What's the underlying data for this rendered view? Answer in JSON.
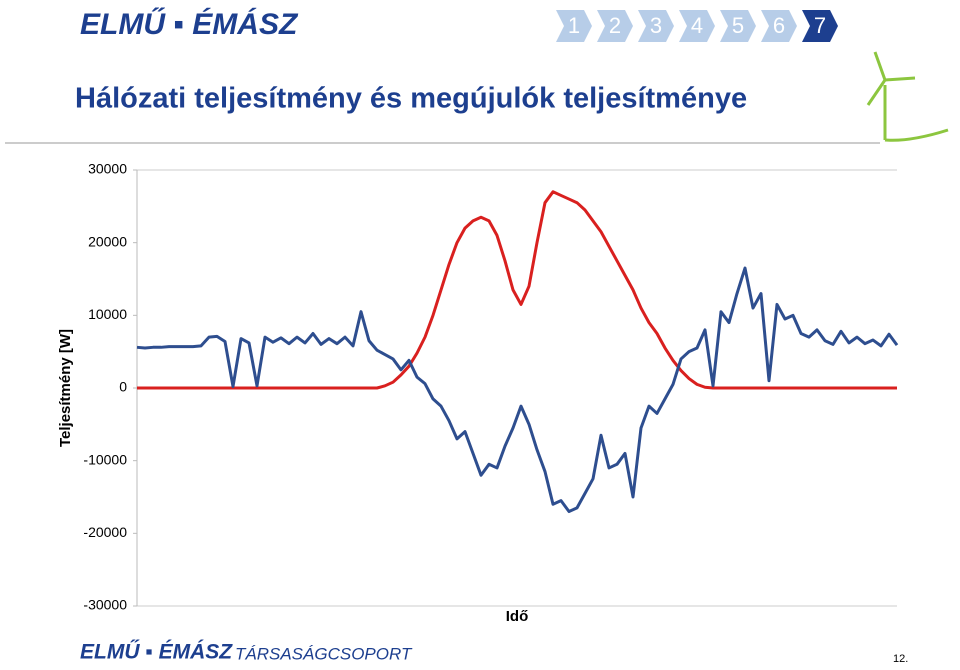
{
  "header": {
    "logo": "ELMŰ ▪ ÉMÁSZ",
    "steps": [
      "1",
      "2",
      "3",
      "4",
      "5",
      "6",
      "7"
    ]
  },
  "footer": {
    "logo": "ELMŰ ▪ ÉMÁSZ",
    "group": "TÁRSASÁGCSOPORT",
    "page": "12."
  },
  "chart_data": {
    "type": "line",
    "title": "Hálózati teljesítmény és megújulók teljesítménye",
    "ylabel": "Teljesítmény [W]",
    "xlabel": "Idő",
    "ylim": [
      -30000,
      30000
    ],
    "yticks": [
      -30000,
      -20000,
      -10000,
      0,
      10000,
      20000,
      30000
    ],
    "series": [
      {
        "color": "#d9201f",
        "values": [
          0,
          0,
          0,
          0,
          0,
          0,
          0,
          0,
          0,
          0,
          0,
          0,
          0,
          0,
          0,
          0,
          0,
          0,
          0,
          0,
          0,
          0,
          0,
          0,
          0,
          0,
          0,
          0,
          0,
          0,
          0,
          300,
          800,
          1800,
          3000,
          4800,
          7000,
          10000,
          13500,
          17000,
          20000,
          22000,
          23000,
          23500,
          23000,
          21000,
          17500,
          13500,
          11500,
          14000,
          20000,
          25500,
          27000,
          26500,
          26000,
          25500,
          24500,
          23000,
          21500,
          19500,
          17500,
          15500,
          13500,
          11000,
          9000,
          7500,
          5500,
          3800,
          2400,
          1300,
          500,
          100,
          0,
          0,
          0,
          0,
          0,
          0,
          0,
          0,
          0,
          0,
          0,
          0,
          0,
          0,
          0,
          0,
          0,
          0,
          0,
          0,
          0,
          0,
          0,
          0
        ]
      },
      {
        "color": "#2e4e8f",
        "values": [
          5600,
          5500,
          5600,
          5600,
          5700,
          5700,
          5700,
          5700,
          5800,
          7000,
          7100,
          6400,
          200,
          6800,
          6200,
          300,
          7000,
          6300,
          6900,
          6100,
          7000,
          6200,
          7500,
          6000,
          6800,
          6100,
          7000,
          5800,
          10500,
          6500,
          5200,
          4600,
          4000,
          2500,
          3800,
          1500,
          600,
          -1500,
          -2500,
          -4500,
          -7000,
          -6000,
          -9000,
          -12000,
          -10500,
          -11000,
          -8000,
          -5500,
          -2500,
          -5000,
          -8500,
          -11500,
          -16000,
          -15500,
          -17000,
          -16500,
          -14500,
          -12500,
          -6500,
          -11000,
          -10500,
          -9000,
          -15000,
          -5500,
          -2500,
          -3500,
          -1500,
          500,
          4000,
          5000,
          5500,
          8000,
          300,
          10500,
          9000,
          13000,
          16500,
          11000,
          13000,
          1000,
          11500,
          9500,
          10000,
          7500,
          7000,
          8000,
          6500,
          6000,
          7800,
          6200,
          7000,
          6100,
          6600,
          5800,
          7400,
          5900
        ]
      }
    ]
  }
}
